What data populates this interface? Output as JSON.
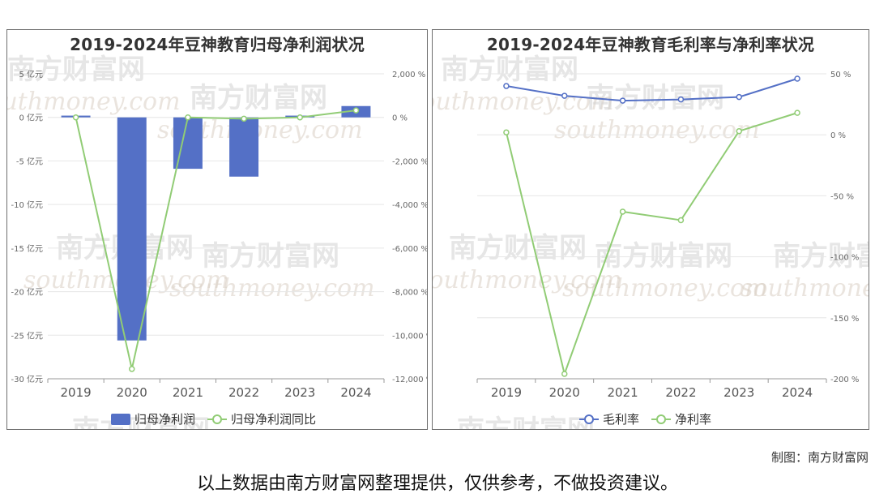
{
  "chart_data": [
    {
      "type": "bar",
      "title": "2019-2024年豆神教育归母净利润状况",
      "categories": [
        "2019",
        "2020",
        "2021",
        "2022",
        "2023",
        "2024"
      ],
      "series": [
        {
          "name": "归母净利润",
          "kind": "bar",
          "axis": "left",
          "color": "#5470c6",
          "values": [
            0.2,
            -25.6,
            -5.9,
            -6.8,
            0.2,
            1.3
          ]
        },
        {
          "name": "归母净利润同比",
          "kind": "line",
          "axis": "right",
          "color": "#91cc75",
          "values": [
            0,
            -11550,
            0,
            -60,
            0,
            320
          ]
        }
      ],
      "ylim": [
        -30,
        5
      ],
      "yticks": [
        "5 亿元",
        "0 亿元",
        "-5 亿元",
        "-10 亿元",
        "-15 亿元",
        "-20 亿元",
        "-25 亿元",
        "-30 亿元"
      ],
      "ylim_right": [
        -12000,
        2000
      ],
      "yticks_right": [
        "2,000 %",
        "0 %",
        "-2,000 %",
        "-4,000 %",
        "-6,000 %",
        "-8,000 %",
        "-10,000 %",
        "-12,000 %"
      ],
      "legend": "bottom",
      "grid": true
    },
    {
      "type": "line",
      "title": "2019-2024年豆神教育毛利率与净利率状况",
      "categories": [
        "2019",
        "2020",
        "2021",
        "2022",
        "2023",
        "2024"
      ],
      "series": [
        {
          "name": "毛利率",
          "color": "#5470c6",
          "values": [
            40,
            32,
            28,
            29,
            31,
            46
          ]
        },
        {
          "name": "净利率",
          "color": "#91cc75",
          "values": [
            2,
            -196,
            -63,
            -70,
            3,
            18
          ]
        }
      ],
      "ylim": [
        -200,
        50
      ],
      "yticks": [
        "50 %",
        "0 %",
        "-50 %",
        "-100 %",
        "-150 %",
        "-200 %"
      ],
      "y_axis_side": "right",
      "legend": "bottom",
      "grid": true
    }
  ],
  "watermark": {
    "cn": "南方财富网",
    "en": "southmoney.com"
  },
  "footer": {
    "credit": "制图：南方财富网",
    "disclaimer": "以上数据由南方财富网整理提供，仅供参考，不做投资建议。"
  }
}
